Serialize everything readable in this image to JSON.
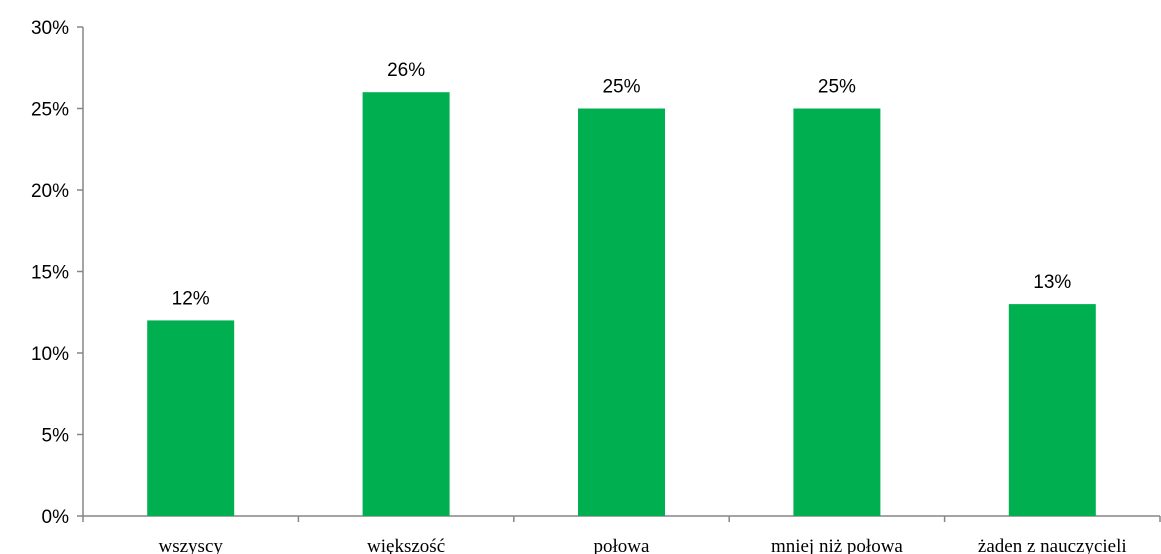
{
  "chart_data": {
    "type": "bar",
    "categories": [
      "wszyscy",
      "większość",
      "połowa",
      "mniej niż połowa",
      "żaden z nauczycieli"
    ],
    "values": [
      12,
      26,
      25,
      25,
      13
    ],
    "data_labels": [
      "12%",
      "26%",
      "25%",
      "25%",
      "13%"
    ],
    "y_ticks": [
      0,
      5,
      10,
      15,
      20,
      25,
      30
    ],
    "y_tick_labels": [
      "0%",
      "5%",
      "10%",
      "15%",
      "20%",
      "25%",
      "30%"
    ],
    "ylim": [
      0,
      30
    ],
    "grid": false,
    "legend": "none",
    "bar_color": "#00B050"
  }
}
